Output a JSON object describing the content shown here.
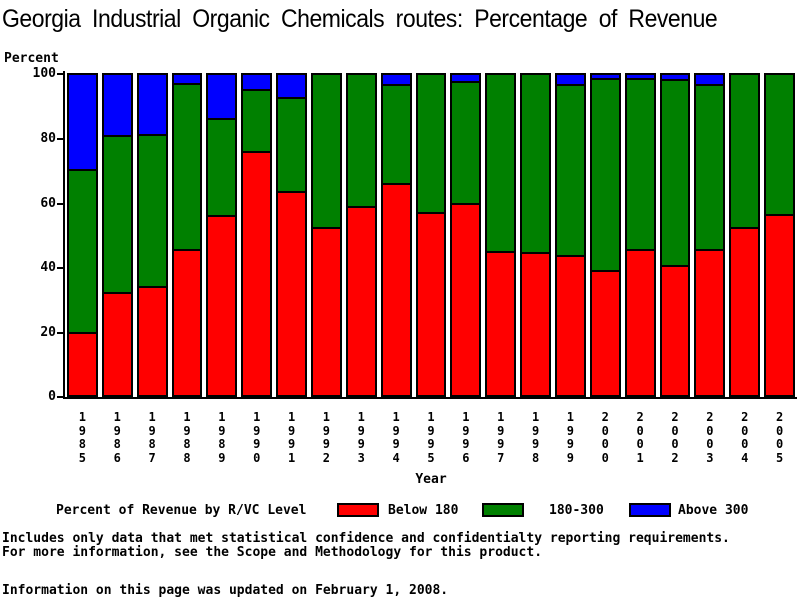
{
  "title": "Georgia Industrial Organic Chemicals routes: Percentage of Revenue",
  "chart_data": {
    "type": "bar",
    "stacked": true,
    "title": "Georgia Industrial Organic Chemicals routes: Percentage of Revenue",
    "ylabel": "Percent",
    "xlabel": "Year",
    "ylim": [
      0,
      100
    ],
    "yticks": [
      0,
      20,
      40,
      60,
      80,
      100
    ],
    "grid": false,
    "legend_title": "Percent of Revenue by R/VC Level",
    "legend_position": "bottom",
    "categories": [
      "1985",
      "1986",
      "1987",
      "1988",
      "1989",
      "1990",
      "1991",
      "1992",
      "1993",
      "1994",
      "1995",
      "1996",
      "1997",
      "1998",
      "1999",
      "2000",
      "2001",
      "2002",
      "2003",
      "2004",
      "2005"
    ],
    "series": [
      {
        "name": "Below 180",
        "color": "#ff0000",
        "values": [
          19,
          31.5,
          33.5,
          45,
          55.5,
          75.5,
          63,
          52,
          58.5,
          65.5,
          56.5,
          59.5,
          44.5,
          44,
          43,
          38.5,
          45,
          40,
          45,
          52,
          56
        ]
      },
      {
        "name": "180-300",
        "color": "#008000",
        "values": [
          51,
          49,
          47.5,
          52,
          30.5,
          19.5,
          29.5,
          48,
          41.5,
          31,
          43.5,
          38,
          55.5,
          56,
          53.5,
          60,
          53.5,
          58,
          51.5,
          48,
          44
        ]
      },
      {
        "name": "Above 300",
        "color": "#0000ff",
        "values": [
          30,
          19.5,
          19,
          3,
          14,
          5,
          7.5,
          0,
          0,
          3.5,
          0,
          2.5,
          0,
          0,
          3.5,
          1.5,
          1.5,
          2,
          3.5,
          0,
          0
        ]
      }
    ]
  },
  "colors": {
    "below_180": "#ff0000",
    "mid_180_300": "#008000",
    "above_300": "#0000ff",
    "axis": "#000000",
    "background": "#ffffff"
  },
  "notes": {
    "line1": "Includes only data that met statistical confidence and confidentialty reporting requirements.",
    "line2": "For more information, see the Scope and Methodology for this product.",
    "updated": "Information on this page was updated on February 1, 2008."
  }
}
